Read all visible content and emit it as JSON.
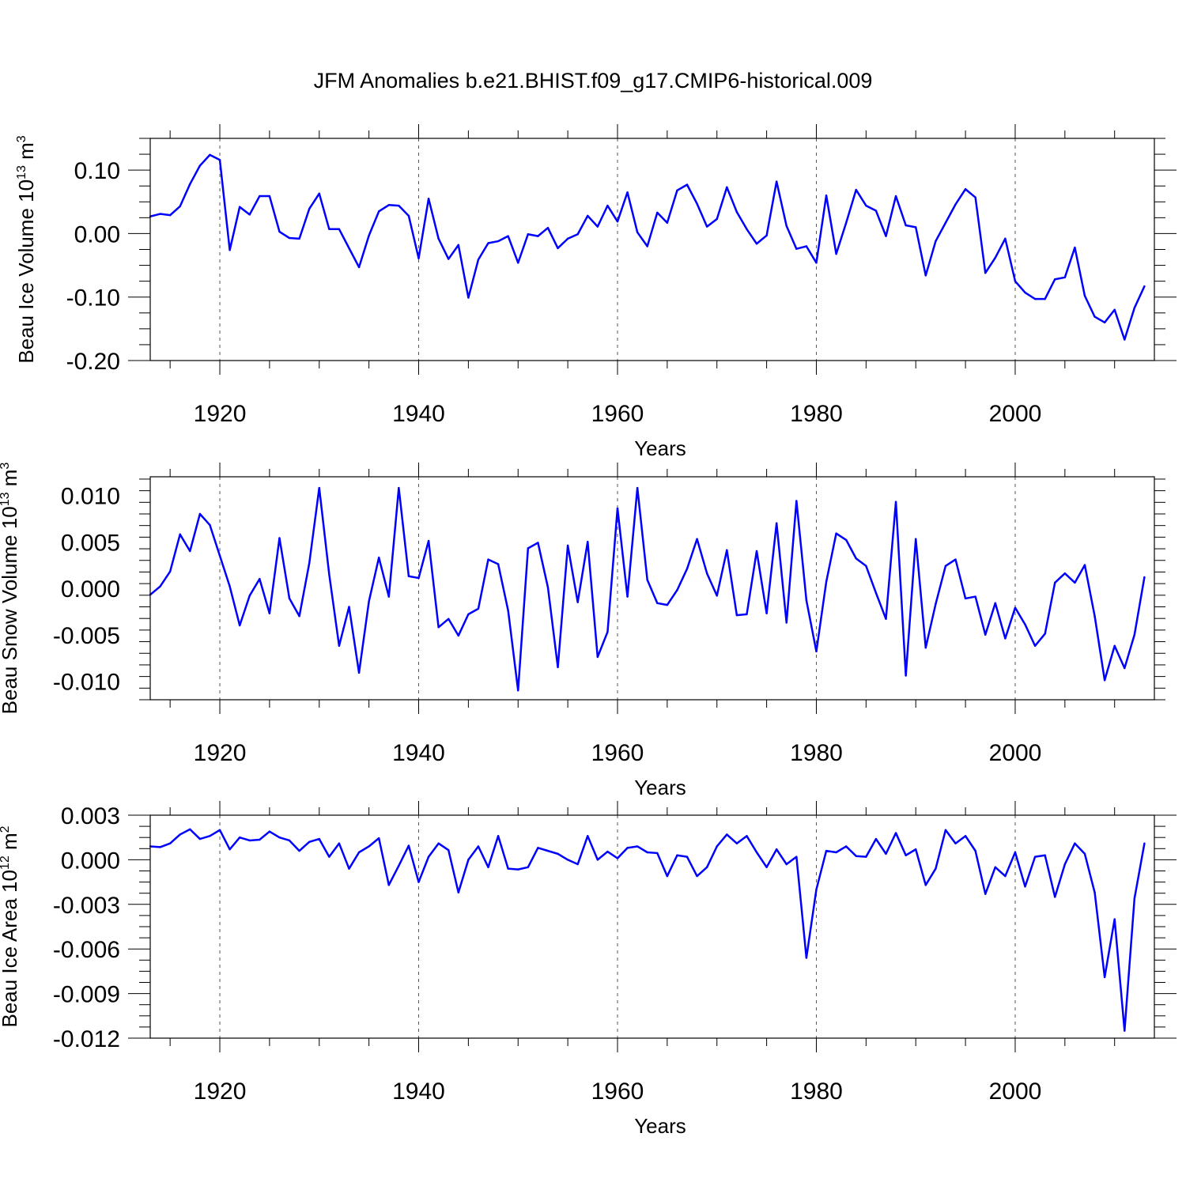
{
  "title": "JFM Anomalies b.e21.BHIST.f09_g17.CMIP6-historical.009",
  "line_color": "#0000ff",
  "chart_data": [
    {
      "type": "line",
      "name": "ice-volume",
      "ylabel": "Beau Ice Volume 10",
      "ylabel_exponent": "13",
      "ylabel_unit": " m",
      "ylabel_unit_exponent": "3",
      "xlabel": "Years",
      "xlim": [
        1913,
        2014
      ],
      "ylim": [
        -0.2,
        0.15
      ],
      "yticks": [
        0.1,
        0.0,
        -0.1,
        -0.2
      ],
      "ytick_labels": [
        "0.10",
        "0.00",
        "-0.10",
        "-0.20"
      ],
      "xticks": [
        1920,
        1940,
        1960,
        1980,
        2000
      ],
      "xtick_labels": [
        "1920",
        "1940",
        "1960",
        "1980",
        "2000"
      ],
      "x_start": 1913,
      "values": [
        0.027,
        0.031,
        0.029,
        0.043,
        0.078,
        0.107,
        0.124,
        0.116,
        -0.026,
        0.042,
        0.03,
        0.059,
        0.059,
        0.003,
        -0.007,
        -0.008,
        0.039,
        0.063,
        0.007,
        0.007,
        -0.023,
        -0.053,
        -0.003,
        0.035,
        0.045,
        0.044,
        0.028,
        -0.039,
        0.055,
        -0.008,
        -0.04,
        -0.018,
        -0.101,
        -0.041,
        -0.015,
        -0.012,
        -0.004,
        -0.046,
        -0.001,
        -0.004,
        0.009,
        -0.023,
        -0.008,
        -0.001,
        0.028,
        0.011,
        0.044,
        0.019,
        0.065,
        0.002,
        -0.02,
        0.033,
        0.017,
        0.068,
        0.077,
        0.047,
        0.011,
        0.023,
        0.073,
        0.034,
        0.007,
        -0.016,
        -0.003,
        0.082,
        0.012,
        -0.024,
        -0.02,
        -0.046,
        0.06,
        -0.032,
        0.017,
        0.069,
        0.044,
        0.036,
        -0.004,
        0.059,
        0.013,
        0.01,
        -0.066,
        -0.012,
        0.017,
        0.046,
        0.07,
        0.057,
        -0.062,
        -0.038,
        -0.008,
        -0.075,
        -0.093,
        -0.103,
        -0.103,
        -0.072,
        -0.069,
        -0.022,
        -0.098,
        -0.131,
        -0.14,
        -0.12,
        -0.167,
        -0.117,
        -0.083
      ]
    },
    {
      "type": "line",
      "name": "snow-volume",
      "ylabel": "Beau Snow Volume 10",
      "ylabel_exponent": "13",
      "ylabel_unit": " m",
      "ylabel_unit_exponent": "3",
      "xlabel": "Years",
      "xlim": [
        1913,
        2014
      ],
      "ylim": [
        -0.012,
        0.012
      ],
      "yticks": [
        0.01,
        0.005,
        0.0,
        -0.005,
        -0.01
      ],
      "ytick_labels": [
        "0.010",
        "0.005",
        "0.000",
        "-0.005",
        "-0.010"
      ],
      "xticks": [
        1920,
        1940,
        1960,
        1980,
        2000
      ],
      "xtick_labels": [
        "1920",
        "1940",
        "1960",
        "1980",
        "2000"
      ],
      "x_start": 1913,
      "values": [
        -0.0007,
        0.0002,
        0.0018,
        0.0058,
        0.004,
        0.008,
        0.0068,
        0.0035,
        0.0002,
        -0.004,
        -0.0008,
        0.001,
        -0.0027,
        0.0054,
        -0.0011,
        -0.003,
        0.0027,
        0.0108,
        0.0015,
        -0.0062,
        -0.002,
        -0.0091,
        -0.0014,
        0.0033,
        -0.0009,
        0.0108,
        0.0013,
        0.0011,
        0.0051,
        -0.0042,
        -0.0033,
        -0.0051,
        -0.0028,
        -0.0022,
        0.0031,
        0.0026,
        -0.0024,
        -0.011,
        0.0043,
        0.0049,
        0.0001,
        -0.0085,
        0.0046,
        -0.0015,
        0.005,
        -0.0074,
        -0.0047,
        0.0086,
        -0.0009,
        0.0108,
        0.0009,
        -0.0016,
        -0.0018,
        -0.0002,
        0.0021,
        0.0053,
        0.0016,
        -0.0008,
        0.0041,
        -0.0029,
        -0.0028,
        0.004,
        -0.0027,
        0.007,
        -0.0037,
        0.0094,
        -0.0013,
        -0.0068,
        0.0007,
        0.0059,
        0.0052,
        0.0032,
        0.0024,
        -0.0005,
        -0.0033,
        0.0093,
        -0.0094,
        0.0053,
        -0.0064,
        -0.0017,
        0.0024,
        0.0031,
        -0.0011,
        -0.0009,
        -0.005,
        -0.0016,
        -0.0054,
        -0.0021,
        -0.0039,
        -0.0062,
        -0.0049,
        0.0006,
        0.0016,
        0.0006,
        0.0025,
        -0.003,
        -0.0099,
        -0.0062,
        -0.0086,
        -0.005,
        0.0012
      ]
    },
    {
      "type": "line",
      "name": "ice-area",
      "ylabel": "Beau Ice Area 10",
      "ylabel_exponent": "12",
      "ylabel_unit": " m",
      "ylabel_unit_exponent": "2",
      "xlabel": "Years",
      "xlim": [
        1913,
        2014
      ],
      "ylim": [
        -0.012,
        0.003
      ],
      "yticks": [
        0.003,
        0.0,
        -0.003,
        -0.006,
        -0.009,
        -0.012
      ],
      "ytick_labels": [
        "0.003",
        "0.000",
        "-0.003",
        "-0.006",
        "-0.009",
        "-0.012"
      ],
      "xticks": [
        1920,
        1940,
        1960,
        1980,
        2000
      ],
      "xtick_labels": [
        "1920",
        "1940",
        "1960",
        "1980",
        "2000"
      ],
      "x_start": 1913,
      "values": [
        0.0009,
        0.00085,
        0.0011,
        0.0017,
        0.00205,
        0.0014,
        0.0016,
        0.002,
        0.0007,
        0.0015,
        0.0013,
        0.00135,
        0.0019,
        0.0015,
        0.0013,
        0.0006,
        0.0012,
        0.0014,
        0.0002,
        0.0011,
        -0.0006,
        0.0005,
        0.0009,
        0.00145,
        -0.0017,
        -0.0004,
        0.00095,
        -0.0015,
        0.0002,
        0.0011,
        0.00065,
        -0.0022,
        0.0,
        0.0009,
        -0.0005,
        0.0016,
        -0.0006,
        -0.00065,
        -0.0005,
        0.0008,
        0.0006,
        0.0004,
        0.0,
        -0.0003,
        0.0016,
        0.0,
        0.00055,
        0.0001,
        0.0008,
        0.0009,
        0.0005,
        0.00045,
        -0.0011,
        0.0003,
        0.0002,
        -0.0011,
        -0.0005,
        0.0009,
        0.0017,
        0.0011,
        0.0016,
        0.0005,
        -0.0005,
        0.0007,
        -0.0003,
        0.0002,
        -0.0066,
        -0.002,
        0.0006,
        0.0005,
        0.0009,
        0.00025,
        0.0002,
        0.0014,
        0.0004,
        0.0018,
        0.0003,
        0.0007,
        -0.0017,
        -0.0006,
        0.002,
        0.0011,
        0.0016,
        0.0006,
        -0.0023,
        -0.0005,
        -0.0011,
        0.0005,
        -0.0018,
        0.0002,
        0.0003,
        -0.0025,
        -0.0003,
        0.0011,
        0.0004,
        -0.0022,
        -0.0079,
        -0.004,
        -0.0115,
        -0.0026,
        0.0011
      ]
    }
  ]
}
